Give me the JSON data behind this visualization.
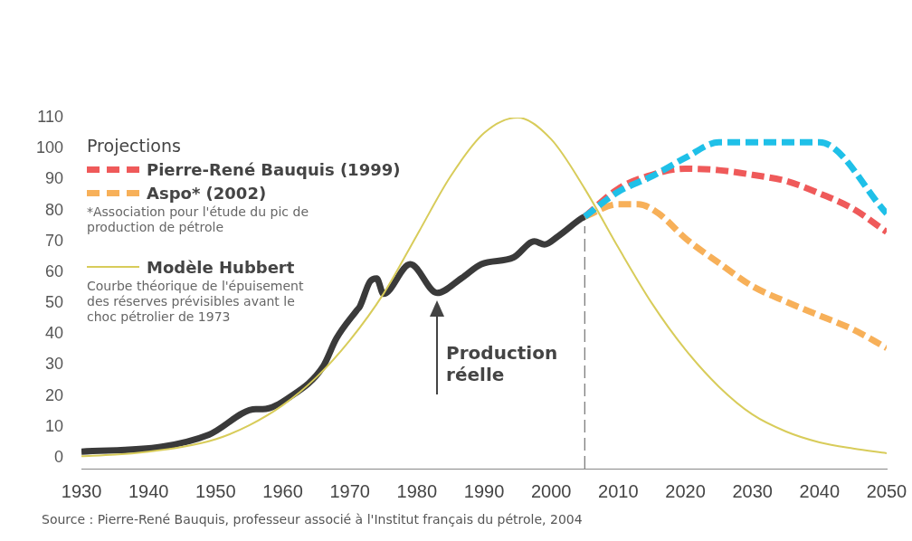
{
  "chart_data": {
    "type": "line",
    "legend_title": "Projections",
    "legend": "top left",
    "grid": false,
    "marker": "none",
    "xlim": [
      1930,
      2050
    ],
    "xticks": [
      1930,
      1940,
      1950,
      1960,
      1970,
      1980,
      1990,
      2000,
      2010,
      2020,
      2030,
      2040,
      2050
    ],
    "ylim": [
      -3.5,
      110
    ],
    "yticks": [
      0,
      10,
      20,
      30,
      40,
      50,
      60,
      70,
      80,
      90,
      100,
      110
    ],
    "series": [
      {
        "name": "Modèle Hubbert",
        "color": "#d8cc5a",
        "line_style": "solid",
        "x": [
          1930,
          1935,
          1940,
          1945,
          1950,
          1955,
          1960,
          1965,
          1970,
          1975,
          1980,
          1985,
          1990,
          1995,
          2000,
          2005,
          2010,
          2015,
          2020,
          2025,
          2030,
          2035,
          2040,
          2045,
          2050
        ],
        "values": [
          0.5,
          1,
          2,
          3.5,
          6,
          10.5,
          17,
          26,
          38,
          53,
          72,
          91,
          105,
          110,
          103,
          87,
          68,
          50,
          35,
          23,
          14,
          8.5,
          5,
          3,
          1.5
        ]
      },
      {
        "color": "#1fc0e8",
        "line_style": "dashed",
        "x": [
          2005,
          2010,
          2015,
          2020,
          2025,
          2040,
          2050
        ],
        "values": [
          78,
          86,
          91,
          97,
          102,
          102,
          79
        ]
      },
      {
        "name": "Pierre-René Bauquis (1999)",
        "color": "#ef5a5a",
        "line_style": "dashed",
        "x": [
          2005,
          2010,
          2015,
          2020,
          2025,
          2030,
          2035,
          2040,
          2045,
          2050
        ],
        "values": [
          78,
          87,
          91.5,
          93.5,
          93,
          91.5,
          89.5,
          85.5,
          80.5,
          73
        ]
      },
      {
        "name": "Aspo* (2002)",
        "color": "#f7b059",
        "line_style": "dashed",
        "x": [
          2005,
          2010,
          2013,
          2016,
          2020,
          2025,
          2030,
          2035,
          2040,
          2045,
          2050
        ],
        "values": [
          78,
          82,
          82,
          79,
          71,
          63,
          55.5,
          50.5,
          46,
          41.5,
          35.5
        ]
      },
      {
        "color": "#3a3a3a",
        "line_style": "solid",
        "x": [
          1930,
          1942,
          1949,
          1956,
          1957,
          1961,
          1966,
          1968,
          1971,
          1971.5,
          1973,
          1974,
          1975,
          1979,
          1983,
          1986.6,
          1989.6,
          1994.4,
          1997.5,
          1999,
          2001,
          2004.5,
          2005
        ],
        "values": [
          2,
          3.6,
          7.5,
          15.7,
          15.7,
          19.6,
          29.5,
          38.6,
          47.6,
          49,
          57,
          58,
          53,
          62.6,
          53.3,
          58,
          62.6,
          64.8,
          70,
          69,
          71.6,
          77.4,
          78
        ]
      }
    ],
    "ref_lines": [
      {
        "axis": "x",
        "value": 2005,
        "color": "#555555",
        "line_style": "dashed"
      }
    ],
    "annotations": [
      {
        "text": "Production réelle",
        "x": 1983,
        "y": 53.3
      },
      "*Association pour l'étude du pic de production de pétrole",
      "Courbe théorique de l'épuisement des réserves prévisibles avant le choc pétrolier de 1973",
      "Source : Pierre-René Bauquis, professeur associé à l'Institut français du pétrole, 2004"
    ]
  }
}
